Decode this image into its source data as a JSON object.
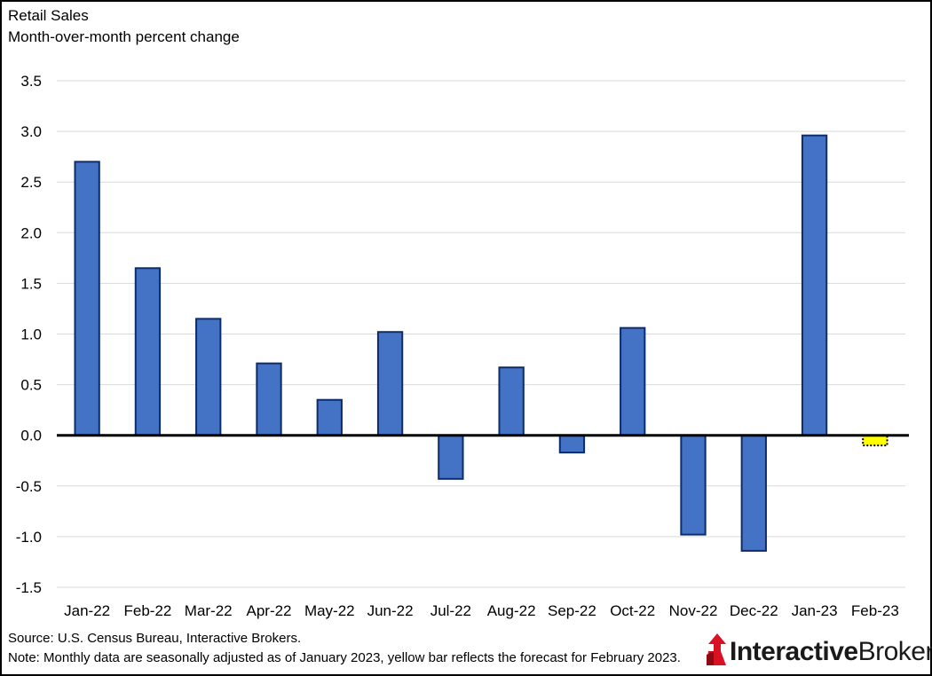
{
  "colors": {
    "bar_fill": "#4472C4",
    "bar_stroke": "#0D2C6B",
    "forecast_fill": "#FFFF00",
    "gridline": "#D9D9D9",
    "logo_red": "#D81222"
  },
  "chart_data": {
    "type": "bar",
    "title": "Retail Sales",
    "subtitle": "Month-over-month  percent change",
    "categories": [
      "Jan-22",
      "Feb-22",
      "Mar-22",
      "Apr-22",
      "May-22",
      "Jun-22",
      "Jul-22",
      "Aug-22",
      "Sep-22",
      "Oct-22",
      "Nov-22",
      "Dec-22",
      "Jan-23",
      "Feb-23"
    ],
    "values": [
      2.7,
      1.65,
      1.15,
      0.71,
      0.35,
      1.02,
      -0.43,
      0.67,
      -0.17,
      1.06,
      -0.98,
      -1.14,
      2.96,
      -0.1
    ],
    "forecast": [
      false,
      false,
      false,
      false,
      false,
      false,
      false,
      false,
      false,
      false,
      false,
      false,
      false,
      true
    ],
    "ylim": [
      -1.5,
      3.5
    ],
    "yticks": [
      "3.5",
      "3.0",
      "2.5",
      "2.0",
      "1.5",
      "1.0",
      "0.5",
      "0.0",
      "-0.5",
      "-1.0",
      "-1.5"
    ],
    "ytick_values": [
      3.5,
      3.0,
      2.5,
      2.0,
      1.5,
      1.0,
      0.5,
      0.0,
      -0.5,
      -1.0,
      -1.5
    ],
    "grid": true,
    "xlabel": "",
    "ylabel": ""
  },
  "footer": {
    "source": "Source: U.S. Census Bureau, Interactive Brokers.",
    "note": "Note: Monthly data are seasonally adjusted as of January 2023, yellow bar reflects the forecast for February 2023."
  },
  "logo": {
    "text_bold": "Interactive",
    "text_regular": "Brokers"
  }
}
